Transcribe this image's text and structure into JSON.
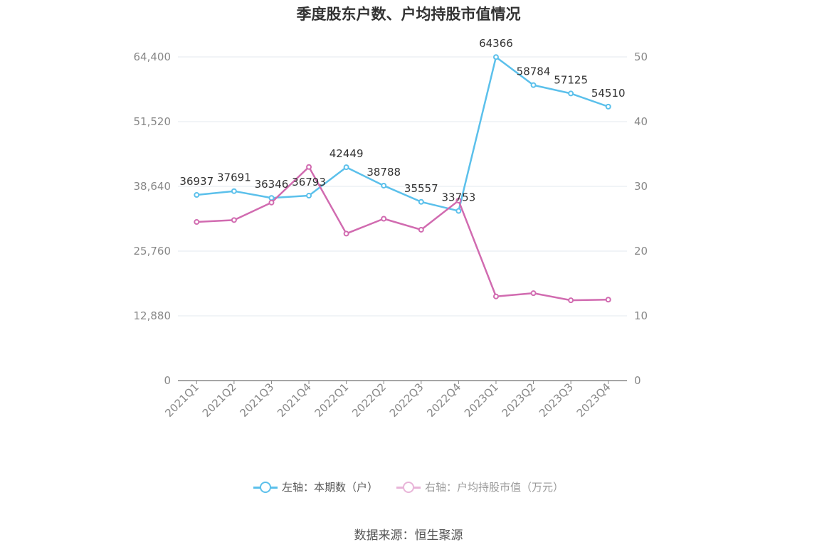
{
  "chart_data": {
    "type": "line",
    "title": "季度股东户数、户均持股市值情况",
    "categories": [
      "2021Q1",
      "2021Q2",
      "2021Q3",
      "2021Q4",
      "2022Q1",
      "2022Q2",
      "2022Q3",
      "2022Q4",
      "2023Q1",
      "2023Q2",
      "2023Q3",
      "2023Q4"
    ],
    "left_axis": {
      "ticks": [
        "0",
        "12,880",
        "25,760",
        "38,640",
        "51,520",
        "64,400"
      ],
      "ylim": [
        0,
        64400
      ]
    },
    "right_axis": {
      "ticks": [
        "0",
        "10",
        "20",
        "30",
        "40",
        "50"
      ],
      "ylim": [
        0,
        50
      ]
    },
    "grid": true,
    "legend_position": "bottom",
    "series": [
      {
        "name": "左轴：本期数（户）",
        "axis": "left",
        "color": "#5bc0eb",
        "values": [
          36937,
          37691,
          36346,
          36793,
          42449,
          38788,
          35557,
          33753,
          64366,
          58784,
          57125,
          54510
        ],
        "labels": [
          "36937",
          "37691",
          "36346",
          "36793",
          "42449",
          "38788",
          "35557",
          "33753",
          "64366",
          "58784",
          "57125",
          "54510"
        ]
      },
      {
        "name": "右轴：户均持股市值（万元）",
        "axis": "right",
        "color": "#d16bb0",
        "values": [
          24.5,
          24.8,
          27.5,
          33.0,
          22.7,
          25.0,
          23.3,
          27.8,
          13.0,
          13.5,
          12.4,
          12.5
        ]
      }
    ]
  },
  "source": "数据来源：恒生聚源"
}
